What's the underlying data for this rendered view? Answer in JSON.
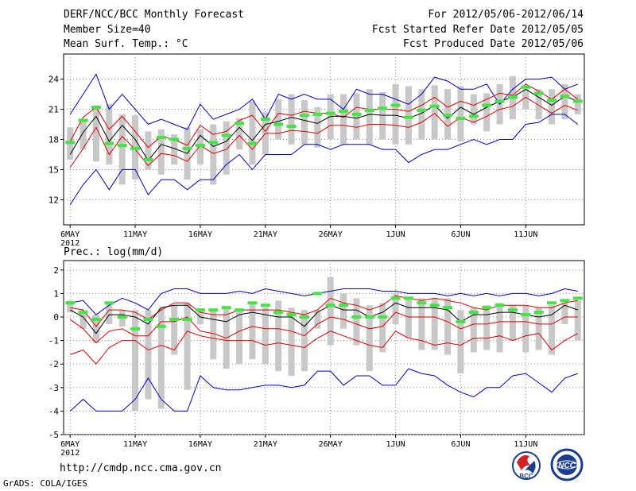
{
  "header": {
    "title": "DERF/NCC/BCC Monthly Forecast",
    "member_size": "Member Size=40",
    "variable_temp": "Mean Surf. Temp.: °C",
    "period": "For 2012/05/06-2012/06/14",
    "fcst_started": "Fcst Started Refer Date 2012/05/05",
    "fcst_produced": "Fcst Produced Date 2012/05/06"
  },
  "footer": {
    "url": "http://cmdp.ncc.cma.gov.cn",
    "grads": "GrADS: COLA/IGES",
    "logo_bcc": "BCC",
    "logo_ncc": "NCC"
  },
  "colors": {
    "ensemble_bar": "#c8c8c8",
    "member_mark": "#44e444",
    "mean_line": "#000000",
    "spread_line": "#e00000",
    "envelope_line": "#0000cc",
    "grid": "#888888"
  },
  "chart_data": [
    {
      "type": "line",
      "title": "Mean Surf. Temp.: °C",
      "x_tick_labels": [
        "6MAY",
        "11MAY",
        "16MAY",
        "21MAY",
        "26MAY",
        "1JUN",
        "6JUN",
        "11JUN"
      ],
      "x_year_label": "2012",
      "days": 40,
      "ylim": [
        9.5,
        26.5
      ],
      "y_ticks": [
        12,
        15,
        18,
        21,
        24
      ],
      "series": [
        {
          "name": "ensemble max",
          "color": "blue",
          "values": [
            20.5,
            22.5,
            24.5,
            21.0,
            22.5,
            21.0,
            19.5,
            20.0,
            19.5,
            19.0,
            21.5,
            20.0,
            20.5,
            21.0,
            22.0,
            20.0,
            22.5,
            22.0,
            22.5,
            22.0,
            22.0,
            21.0,
            23.0,
            22.5,
            22.5,
            22.0,
            21.5,
            22.5,
            24.2,
            23.8,
            23.0,
            23.0,
            23.5,
            21.5,
            23.0,
            24.0,
            24.0,
            24.2,
            23.0,
            23.5
          ]
        },
        {
          "name": "upper spread",
          "color": "red",
          "values": [
            17.8,
            20.2,
            21.2,
            19.0,
            20.3,
            18.8,
            17.2,
            18.3,
            18.0,
            17.4,
            19.4,
            18.5,
            18.8,
            19.9,
            20.4,
            18.8,
            20.6,
            20.4,
            20.8,
            20.6,
            20.6,
            20.2,
            21.2,
            21.0,
            21.0,
            21.0,
            20.8,
            21.4,
            22.2,
            21.2,
            21.8,
            21.4,
            22.0,
            22.6,
            22.4,
            23.5,
            22.8,
            22.0,
            23.0,
            22.0
          ]
        },
        {
          "name": "ensemble mean",
          "color": "black",
          "values": [
            16.5,
            18.7,
            20.3,
            17.8,
            19.4,
            18.0,
            15.9,
            17.5,
            17.1,
            16.6,
            18.4,
            17.3,
            17.8,
            19.2,
            17.9,
            19.5,
            19.8,
            20.2,
            19.9,
            19.6,
            20.3,
            20.3,
            20.1,
            20.5,
            20.4,
            20.4,
            20.1,
            20.6,
            21.4,
            20.1,
            21.2,
            20.5,
            21.2,
            21.8,
            22.2,
            23.0,
            22.2,
            21.4,
            22.3,
            21.8
          ]
        },
        {
          "name": "lower spread",
          "color": "red",
          "values": [
            15.2,
            17.1,
            19.2,
            16.5,
            18.3,
            17.0,
            15.4,
            16.6,
            16.4,
            15.8,
            17.4,
            16.6,
            17.0,
            18.4,
            17.0,
            18.6,
            18.6,
            18.9,
            18.8,
            18.6,
            19.4,
            19.4,
            19.2,
            19.5,
            19.5,
            19.4,
            19.2,
            19.7,
            20.6,
            19.3,
            20.2,
            19.7,
            20.3,
            21.0,
            21.3,
            22.2,
            21.4,
            20.6,
            21.4,
            20.9
          ]
        },
        {
          "name": "ensemble min",
          "color": "blue",
          "values": [
            11.5,
            13.5,
            15.0,
            13.0,
            15.0,
            15.0,
            12.5,
            14.0,
            14.0,
            13.0,
            14.0,
            14.0,
            15.5,
            16.5,
            15.0,
            16.5,
            16.5,
            16.5,
            17.5,
            17.5,
            17.0,
            17.5,
            17.5,
            17.5,
            17.0,
            17.0,
            15.7,
            16.5,
            17.0,
            17.0,
            17.5,
            18.0,
            17.5,
            18.0,
            18.0,
            19.5,
            19.7,
            20.5,
            20.5,
            19.5
          ]
        },
        {
          "name": "member bar top",
          "color": "gray",
          "values": [
            19.2,
            19.8,
            21.0,
            21.5,
            20.5,
            20.4,
            18.8,
            19.0,
            18.5,
            19.2,
            19.0,
            19.5,
            19.8,
            20.1,
            21.8,
            20.7,
            22.0,
            22.5,
            21.9,
            21.2,
            22.5,
            22.5,
            22.6,
            23.0,
            22.7,
            23.5,
            23.3,
            23.0,
            23.4,
            23.0,
            23.3,
            22.5,
            22.6,
            23.5,
            24.3,
            23.0,
            23.0,
            23.0,
            23.5,
            22.5
          ]
        },
        {
          "name": "member bar bottom",
          "color": "gray",
          "values": [
            16.0,
            17.0,
            15.8,
            15.5,
            13.5,
            14.0,
            15.0,
            14.5,
            15.5,
            14.0,
            15.5,
            13.5,
            14.5,
            17.0,
            15.5,
            16.5,
            18.0,
            17.5,
            17.5,
            17.2,
            18.0,
            17.5,
            18.0,
            17.5,
            18.0,
            17.5,
            17.5,
            18.0,
            18.0,
            18.0,
            17.8,
            19.5,
            18.8,
            19.5,
            20.0,
            21.0,
            20.0,
            19.5,
            20.0,
            20.5
          ]
        },
        {
          "name": "ensemble member mark",
          "color": "green",
          "values": [
            17.7,
            19.9,
            21.2,
            17.6,
            17.4,
            17.1,
            16.0,
            18.2,
            18.0,
            17.1,
            17.4,
            17.7,
            18.4,
            19.6,
            17.6,
            20.0,
            19.5,
            19.3,
            20.4,
            20.5,
            20.6,
            20.8,
            20.5,
            20.9,
            21.1,
            21.4,
            20.2,
            20.9,
            21.3,
            20.4,
            20.1,
            20.3,
            21.4,
            21.8,
            22.2,
            23.2,
            22.6,
            21.9,
            22.3,
            21.8
          ]
        }
      ]
    },
    {
      "type": "line",
      "title": "Prec.: log(mm/d)",
      "x_tick_labels": [
        "6MAY",
        "11MAY",
        "16MAY",
        "21MAY",
        "26MAY",
        "1JUN",
        "6JUN",
        "11JUN"
      ],
      "x_year_label": "2012",
      "days": 40,
      "ylim": [
        -5,
        2.4
      ],
      "y_ticks": [
        -5,
        -4,
        -3,
        -2,
        -1,
        0,
        1,
        2
      ],
      "series": [
        {
          "name": "ensemble max",
          "color": "blue",
          "values": [
            0.6,
            0.7,
            0.1,
            0.5,
            0.8,
            0.6,
            0.3,
            1.0,
            1.2,
            1.2,
            1.0,
            1.0,
            1.0,
            1.1,
            1.0,
            1.2,
            1.1,
            1.0,
            0.9,
            1.0,
            1.1,
            1.2,
            1.2,
            1.2,
            1.1,
            1.1,
            1.0,
            1.0,
            1.0,
            0.9,
            1.0,
            0.9,
            1.0,
            0.9,
            1.0,
            1.0,
            0.9,
            1.0,
            1.2,
            1.1
          ]
        },
        {
          "name": "upper spread",
          "color": "red",
          "values": [
            0.4,
            0.3,
            -0.4,
            0.3,
            0.3,
            0.2,
            -0.1,
            0.3,
            0.6,
            0.6,
            0.2,
            0.1,
            0.1,
            0.3,
            0.3,
            0.3,
            0.3,
            0.2,
            0.1,
            0.3,
            0.8,
            0.6,
            0.5,
            0.3,
            0.5,
            0.9,
            0.8,
            0.7,
            0.8,
            0.7,
            0.6,
            0.4,
            0.3,
            0.5,
            0.5,
            0.5,
            0.4,
            0.4,
            0.6,
            0.7
          ]
        },
        {
          "name": "ensemble mean",
          "color": "black",
          "values": [
            0.3,
            0.0,
            -0.7,
            0.1,
            0.1,
            0.0,
            -0.3,
            0.4,
            0.5,
            0.5,
            0.0,
            -0.1,
            -0.2,
            0.1,
            0.2,
            0.1,
            0.0,
            0.0,
            -0.4,
            0.2,
            0.5,
            0.3,
            0.3,
            0.0,
            0.2,
            0.6,
            0.4,
            0.4,
            0.4,
            0.3,
            -0.2,
            0.1,
            0.1,
            0.2,
            0.2,
            0.1,
            0.0,
            0.1,
            0.5,
            0.3
          ]
        },
        {
          "name": "lower spread",
          "color": "red",
          "values": [
            -0.1,
            -0.5,
            -1.1,
            -0.6,
            -0.5,
            -0.8,
            -0.8,
            -0.2,
            -0.2,
            0.0,
            -0.6,
            -0.7,
            -0.9,
            -0.6,
            -0.4,
            -0.5,
            -0.5,
            -0.6,
            -0.8,
            -0.3,
            0.0,
            -0.1,
            -0.3,
            -0.5,
            -0.4,
            0.2,
            0.0,
            0.0,
            0.0,
            -0.2,
            -0.5,
            -0.3,
            -0.3,
            -0.2,
            -0.2,
            -0.2,
            -0.3,
            -0.3,
            0.0,
            0.0
          ]
        },
        {
          "name": "ensemble min lower",
          "color": "red",
          "values": [
            -1.6,
            -1.4,
            -2.0,
            -1.3,
            -1.0,
            -1.0,
            -1.4,
            -1.2,
            -1.4,
            -0.6,
            -0.8,
            -0.9,
            -1.0,
            -1.0,
            -1.0,
            -1.2,
            -1.1,
            -1.2,
            -1.3,
            -0.9,
            -0.6,
            -0.8,
            -1.0,
            -1.2,
            -1.3,
            -0.6,
            -0.9,
            -1.0,
            -1.2,
            -1.1,
            -1.2,
            -0.9,
            -0.9,
            -0.8,
            -1.0,
            -0.8,
            -0.7,
            -1.4,
            -1.0,
            -0.7
          ]
        },
        {
          "name": "ensemble min",
          "color": "blue",
          "values": [
            -4.0,
            -3.5,
            -4.0,
            -4.0,
            -4.0,
            -3.5,
            -2.6,
            -3.5,
            -4.0,
            -4.0,
            -2.5,
            -3.0,
            -3.1,
            -3.1,
            -3.0,
            -2.9,
            -2.9,
            -3.0,
            -2.9,
            -2.3,
            -2.3,
            -2.9,
            -2.5,
            -2.5,
            -2.9,
            -2.9,
            -2.2,
            -2.4,
            -2.5,
            -2.9,
            -3.2,
            -3.4,
            -3.0,
            -3.0,
            -2.5,
            -2.4,
            -2.8,
            -3.2,
            -2.6,
            -2.4
          ]
        },
        {
          "name": "member bar top",
          "color": "gray",
          "values": [
            0.7,
            0.3,
            0.1,
            0.6,
            0.3,
            0.3,
            0.3,
            0.4,
            0.5,
            0.6,
            0.3,
            0.3,
            0.4,
            0.3,
            0.6,
            0.4,
            0.7,
            0.4,
            0.3,
            0.3,
            1.7,
            1.0,
            0.8,
            0.5,
            0.6,
            1.0,
            0.8,
            0.8,
            0.8,
            0.8,
            0.3,
            0.4,
            0.5,
            0.6,
            0.5,
            0.5,
            0.4,
            0.5,
            0.6,
            0.7
          ]
        },
        {
          "name": "member bar bottom",
          "color": "gray",
          "values": [
            0.2,
            -0.5,
            -1.1,
            -0.3,
            -0.4,
            -4.0,
            -3.5,
            -3.9,
            -1.6,
            -3.1,
            -0.3,
            -1.8,
            -2.2,
            -2.0,
            -1.8,
            -2.0,
            -2.3,
            -2.5,
            -2.3,
            -0.5,
            -1.2,
            -0.5,
            -1.2,
            -2.3,
            -1.5,
            -0.3,
            -0.9,
            -1.4,
            -1.4,
            -1.6,
            -2.4,
            -1.5,
            -1.4,
            -1.5,
            -1.0,
            -1.5,
            -1.4,
            -1.6,
            -0.3,
            -1.0
          ]
        },
        {
          "name": "ensemble member mark",
          "color": "green",
          "values": [
            0.6,
            0.2,
            -0.1,
            0.6,
            0.0,
            -0.5,
            -0.1,
            -0.4,
            -0.1,
            -0.1,
            0.3,
            0.3,
            0.4,
            0.3,
            0.6,
            0.5,
            0.2,
            0.1,
            0.0,
            1.0,
            0.5,
            0.5,
            0.0,
            0.0,
            0.0,
            0.8,
            0.8,
            0.6,
            0.5,
            0.4,
            -0.2,
            0.2,
            0.4,
            0.5,
            0.3,
            0.1,
            0.2,
            0.6,
            0.7,
            0.8
          ]
        }
      ]
    }
  ]
}
